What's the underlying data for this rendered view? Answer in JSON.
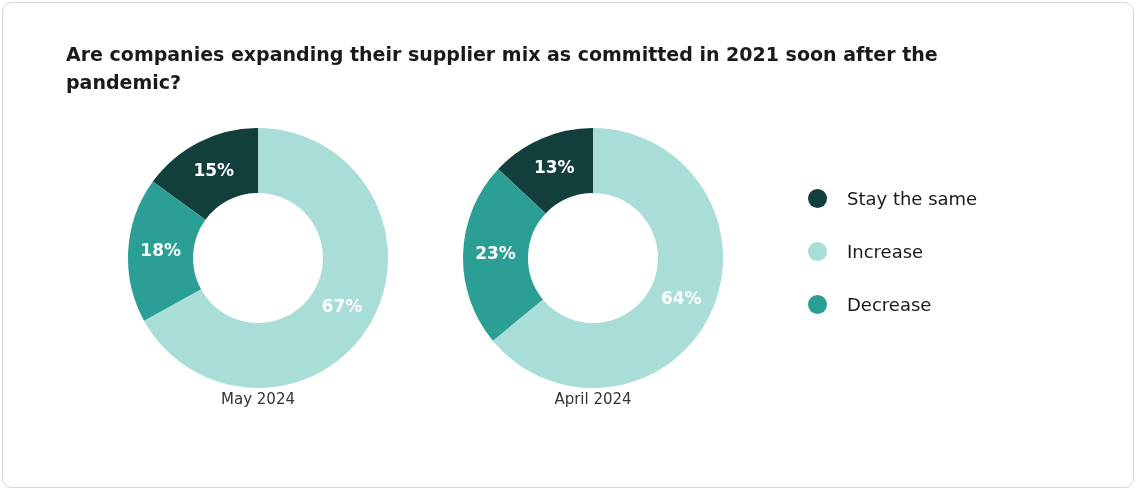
{
  "chart_data": [
    {
      "type": "donut",
      "title": "Are companies expanding their supplier mix as committed in 2021 soon after the pandemic?",
      "xlabel": "May 2024",
      "categories": [
        "Stay the same",
        "Increase",
        "Decrease"
      ],
      "values": [
        15,
        67,
        18
      ],
      "value_labels": [
        "15%",
        "67%",
        "18%"
      ],
      "colors": [
        "#123f3b",
        "#a9ddd7",
        "#2b9e95"
      ],
      "legend": "right"
    },
    {
      "type": "donut",
      "xlabel": "April 2024",
      "categories": [
        null,
        null,
        null
      ],
      "values": [
        13,
        64,
        23
      ],
      "value_labels": [
        "13%",
        "64%",
        "23%"
      ],
      "colors": [
        "#123f3b",
        "#a9ddd7",
        "#2b9e95"
      ]
    }
  ]
}
